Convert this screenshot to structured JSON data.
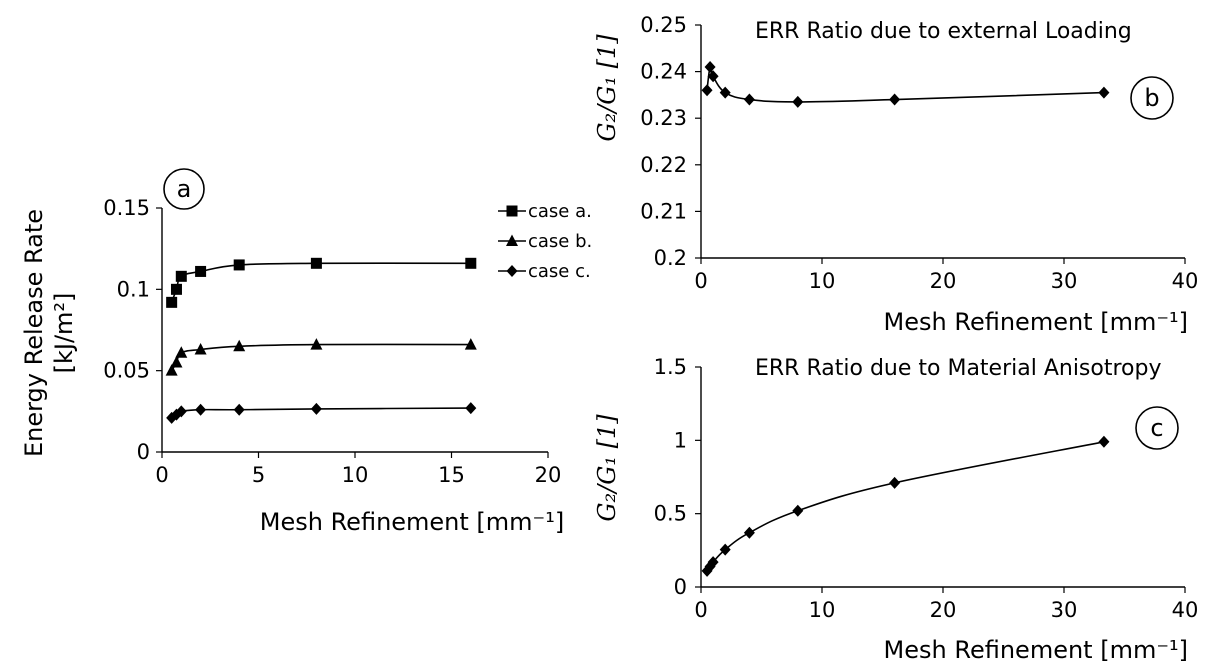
{
  "chart_data": [
    {
      "id": "a",
      "type": "line",
      "badge": "a",
      "title": "",
      "ylabel_lines": [
        "Energy Release Rate",
        "[kJ/m²]"
      ],
      "xlabel": "Mesh Refinement [mm⁻¹]",
      "xlim": [
        0,
        20
      ],
      "ylim": [
        0,
        0.15
      ],
      "xticks": [
        0,
        5,
        10,
        15,
        20
      ],
      "yticks": [
        0,
        0.05,
        0.1,
        0.15
      ],
      "xtick_labels": [
        "0",
        "5",
        "10",
        "15",
        "20"
      ],
      "ytick_labels": [
        "0",
        "0.05",
        "0.1",
        "0.15"
      ],
      "grid": false,
      "legend_position": "right",
      "series": [
        {
          "name": "case a.",
          "marker": "square",
          "x": [
            0.5,
            0.75,
            1.0,
            2.0,
            4.0,
            8.0,
            16.0
          ],
          "y": [
            0.092,
            0.1,
            0.108,
            0.111,
            0.115,
            0.116,
            0.116
          ]
        },
        {
          "name": "case b.",
          "marker": "triangle",
          "x": [
            0.5,
            0.75,
            1.0,
            2.0,
            4.0,
            8.0,
            16.0
          ],
          "y": [
            0.05,
            0.055,
            0.061,
            0.063,
            0.065,
            0.066,
            0.066
          ]
        },
        {
          "name": "case c.",
          "marker": "diamond",
          "x": [
            0.5,
            0.75,
            1.0,
            2.0,
            4.0,
            8.0,
            16.0
          ],
          "y": [
            0.021,
            0.023,
            0.025,
            0.026,
            0.026,
            0.0265,
            0.027
          ]
        }
      ]
    },
    {
      "id": "b",
      "type": "line",
      "badge": "b",
      "title": "ERR Ratio due to external Loading",
      "ylabel": "G₂/G₁ [1]",
      "xlabel": "Mesh Refinement [mm⁻¹]",
      "xlim": [
        0,
        40
      ],
      "ylim": [
        0.2,
        0.25
      ],
      "xticks": [
        0,
        10,
        20,
        30,
        40
      ],
      "yticks": [
        0.2,
        0.21,
        0.22,
        0.23,
        0.24,
        0.25
      ],
      "xtick_labels": [
        "0",
        "10",
        "20",
        "30",
        "40"
      ],
      "ytick_labels": [
        "0.2",
        "0.21",
        "0.22",
        "0.23",
        "0.24",
        "0.25"
      ],
      "grid": false,
      "series": [
        {
          "marker": "diamond",
          "x": [
            0.5,
            0.75,
            1.0,
            2.0,
            4.0,
            8.0,
            16.0,
            33.3
          ],
          "y": [
            0.236,
            0.241,
            0.239,
            0.2355,
            0.234,
            0.2335,
            0.234,
            0.2355
          ]
        }
      ]
    },
    {
      "id": "c",
      "type": "line",
      "badge": "c",
      "title": "ERR Ratio due to Material Anisotropy",
      "ylabel": "G₂/G₁ [1]",
      "xlabel": "Mesh Refinement [mm⁻¹]",
      "xlim": [
        0,
        40
      ],
      "ylim": [
        0,
        1.5
      ],
      "xticks": [
        0,
        10,
        20,
        30,
        40
      ],
      "yticks": [
        0,
        0.5,
        1,
        1.5
      ],
      "xtick_labels": [
        "0",
        "10",
        "20",
        "30",
        "40"
      ],
      "ytick_labels": [
        "0",
        "0.5",
        "1",
        "1.5"
      ],
      "grid": false,
      "series": [
        {
          "marker": "diamond",
          "x": [
            0.5,
            0.75,
            1.0,
            2.0,
            4.0,
            8.0,
            16.0,
            33.3
          ],
          "y": [
            0.11,
            0.14,
            0.17,
            0.255,
            0.37,
            0.52,
            0.71,
            0.99
          ]
        }
      ]
    }
  ]
}
